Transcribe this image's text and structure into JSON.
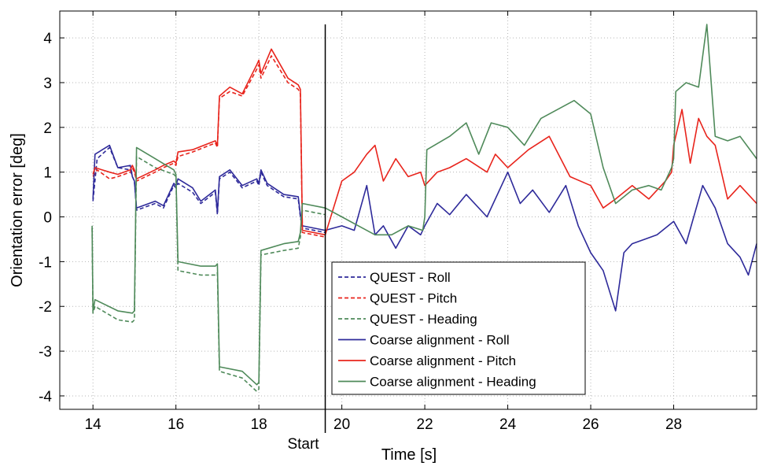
{
  "chart_data": {
    "type": "line",
    "xlabel": "Time [s]",
    "ylabel": "Orientation error [deg]",
    "xlim": [
      13.2,
      30
    ],
    "ylim": [
      -4.3,
      4.6
    ],
    "xticks": [
      14,
      16,
      18,
      20,
      22,
      24,
      26,
      28
    ],
    "yticks": [
      -4,
      -3,
      -2,
      -1,
      0,
      1,
      2,
      3,
      4
    ],
    "grid": true,
    "legend_position": "lower-center",
    "annotations": [
      {
        "type": "vline",
        "x": 19.6,
        "label": "Start"
      }
    ],
    "series": [
      {
        "name": "QUEST - Roll",
        "color": "#2e2a9a",
        "dashed": true,
        "x": [
          14.0,
          14.1,
          14.4,
          14.6,
          14.9,
          14.95,
          15.0,
          15.05,
          15.5,
          15.7,
          15.95,
          16.0,
          16.05,
          16.4,
          16.6,
          16.95,
          17.0,
          17.05,
          17.3,
          17.6,
          17.95,
          18.0,
          18.05,
          18.2,
          18.6,
          18.95,
          19.0,
          19.05,
          19.6
        ],
        "y": [
          0.35,
          1.3,
          1.55,
          1.1,
          1.05,
          0.9,
          0.8,
          0.15,
          0.3,
          0.2,
          0.7,
          0.65,
          0.75,
          0.55,
          0.3,
          0.55,
          0.05,
          0.85,
          1.0,
          0.65,
          0.8,
          0.7,
          1.0,
          0.7,
          0.45,
          0.4,
          0.0,
          -0.25,
          -0.35
        ]
      },
      {
        "name": "QUEST - Pitch",
        "color": "#e8241c",
        "dashed": true,
        "x": [
          14.0,
          14.1,
          14.4,
          14.6,
          14.9,
          14.95,
          15.0,
          15.05,
          15.5,
          15.7,
          15.95,
          16.0,
          16.05,
          16.4,
          16.95,
          17.0,
          17.05,
          17.3,
          17.6,
          17.95,
          18.0,
          18.05,
          18.3,
          18.7,
          18.95,
          19.0,
          19.05,
          19.6
        ],
        "y": [
          0.9,
          1.05,
          0.85,
          0.9,
          1.0,
          1.1,
          1.0,
          0.8,
          1.0,
          1.1,
          1.2,
          1.15,
          1.35,
          1.45,
          1.65,
          1.55,
          2.65,
          2.8,
          2.7,
          3.3,
          3.4,
          3.1,
          3.6,
          3.0,
          2.85,
          2.75,
          -0.35,
          -0.45
        ]
      },
      {
        "name": "QUEST - Heading",
        "color": "#4f8a5a",
        "dashed": true,
        "x": [
          13.98,
          14.0,
          14.05,
          14.6,
          14.95,
          15.0,
          15.05,
          15.5,
          15.95,
          16.0,
          16.05,
          16.6,
          16.95,
          17.0,
          17.05,
          17.6,
          17.95,
          18.0,
          18.05,
          18.6,
          18.95,
          19.0,
          19.05,
          19.6
        ],
        "y": [
          -0.25,
          -2.15,
          -2.0,
          -2.3,
          -2.35,
          -2.3,
          1.35,
          1.1,
          0.95,
          0.9,
          -1.2,
          -1.3,
          -1.3,
          -1.25,
          -3.45,
          -3.6,
          -3.9,
          -3.85,
          -0.85,
          -0.75,
          -0.7,
          -0.45,
          0.15,
          0.05
        ]
      },
      {
        "name": "Coarse alignment - Roll",
        "color": "#2e2a9a",
        "dashed": false,
        "x": [
          14.0,
          14.05,
          14.4,
          14.6,
          14.9,
          14.95,
          15.0,
          15.05,
          15.5,
          15.7,
          15.95,
          16.0,
          16.05,
          16.4,
          16.6,
          16.95,
          17.0,
          17.05,
          17.3,
          17.6,
          17.95,
          18.0,
          18.05,
          18.2,
          18.6,
          18.95,
          19.0,
          19.05,
          19.6,
          20.0,
          20.3,
          20.6,
          20.8,
          21.0,
          21.3,
          21.6,
          21.9,
          22.0,
          22.3,
          22.6,
          23.0,
          23.5,
          24.0,
          24.3,
          24.6,
          25.0,
          25.4,
          25.7,
          26.0,
          26.3,
          26.6,
          26.8,
          27.0,
          27.3,
          27.6,
          28.0,
          28.3,
          28.7,
          29.0,
          29.3,
          29.6,
          29.8,
          30.0
        ],
        "y": [
          0.4,
          1.4,
          1.6,
          1.1,
          1.15,
          0.9,
          0.8,
          0.2,
          0.35,
          0.25,
          0.75,
          0.7,
          0.85,
          0.65,
          0.35,
          0.6,
          0.1,
          0.9,
          1.05,
          0.7,
          0.85,
          0.75,
          1.05,
          0.75,
          0.5,
          0.45,
          0.05,
          -0.2,
          -0.3,
          -0.2,
          -0.3,
          0.7,
          -0.4,
          -0.2,
          -0.7,
          -0.2,
          -0.4,
          -0.2,
          0.3,
          0.05,
          0.5,
          0.0,
          1.0,
          0.3,
          0.6,
          0.1,
          0.7,
          -0.2,
          -0.8,
          -1.2,
          -2.1,
          -0.8,
          -0.6,
          -0.5,
          -0.4,
          -0.1,
          -0.6,
          0.7,
          0.2,
          -0.6,
          -0.9,
          -1.3,
          -0.6
        ]
      },
      {
        "name": "Coarse alignment - Pitch",
        "color": "#e8241c",
        "dashed": false,
        "x": [
          14.0,
          14.05,
          14.4,
          14.6,
          14.9,
          14.95,
          15.0,
          15.05,
          15.5,
          15.7,
          15.95,
          16.0,
          16.05,
          16.4,
          16.95,
          17.0,
          17.05,
          17.3,
          17.6,
          17.95,
          18.0,
          18.05,
          18.3,
          18.7,
          18.95,
          19.0,
          19.05,
          19.6,
          20.0,
          20.3,
          20.6,
          20.8,
          21.0,
          21.3,
          21.6,
          21.9,
          22.0,
          22.3,
          22.6,
          23.0,
          23.5,
          23.7,
          24.0,
          24.5,
          25.0,
          25.5,
          26.0,
          26.3,
          26.6,
          27.0,
          27.4,
          27.8,
          27.95,
          28.0,
          28.2,
          28.4,
          28.6,
          28.8,
          29.0,
          29.3,
          29.6,
          30.0
        ],
        "y": [
          0.95,
          1.1,
          1.0,
          0.95,
          1.05,
          1.15,
          1.05,
          0.85,
          1.05,
          1.15,
          1.25,
          1.2,
          1.45,
          1.5,
          1.7,
          1.6,
          2.7,
          2.9,
          2.75,
          3.4,
          3.5,
          3.2,
          3.75,
          3.1,
          2.95,
          2.85,
          -0.3,
          -0.4,
          0.8,
          1.0,
          1.4,
          1.6,
          0.8,
          1.3,
          0.9,
          1.0,
          0.7,
          1.0,
          1.1,
          1.3,
          1.0,
          1.4,
          1.1,
          1.5,
          1.8,
          0.9,
          0.7,
          0.2,
          0.4,
          0.7,
          0.4,
          0.8,
          1.0,
          1.6,
          2.4,
          1.2,
          2.2,
          1.8,
          1.6,
          0.4,
          0.7,
          0.3
        ]
      },
      {
        "name": "Coarse alignment - Heading",
        "color": "#4f8a5a",
        "dashed": false,
        "x": [
          13.98,
          14.0,
          14.05,
          14.6,
          14.95,
          15.0,
          15.05,
          15.5,
          15.95,
          16.0,
          16.05,
          16.6,
          16.95,
          17.0,
          17.05,
          17.6,
          17.95,
          18.0,
          18.05,
          18.6,
          18.95,
          19.0,
          19.05,
          19.6,
          20.0,
          20.4,
          20.8,
          21.2,
          21.6,
          21.95,
          22.0,
          22.05,
          22.6,
          23.0,
          23.3,
          23.6,
          24.0,
          24.4,
          24.8,
          25.2,
          25.6,
          26.0,
          26.3,
          26.6,
          27.0,
          27.4,
          27.7,
          27.95,
          28.0,
          28.05,
          28.3,
          28.6,
          28.8,
          29.0,
          29.3,
          29.6,
          30.0
        ],
        "y": [
          -0.2,
          -2.1,
          -1.85,
          -2.1,
          -2.15,
          -2.1,
          1.55,
          1.3,
          1.05,
          0.95,
          -1.0,
          -1.1,
          -1.1,
          -1.05,
          -3.35,
          -3.45,
          -3.75,
          -3.7,
          -0.75,
          -0.6,
          -0.55,
          -0.35,
          0.3,
          0.2,
          0.0,
          -0.2,
          -0.4,
          -0.4,
          -0.2,
          -0.3,
          0.0,
          1.5,
          1.8,
          2.1,
          1.4,
          2.1,
          2.0,
          1.6,
          2.2,
          2.4,
          2.6,
          2.3,
          1.1,
          0.3,
          0.6,
          0.7,
          0.6,
          1.1,
          1.3,
          2.8,
          3.0,
          2.9,
          4.3,
          1.8,
          1.7,
          1.8,
          1.3
        ]
      }
    ]
  }
}
